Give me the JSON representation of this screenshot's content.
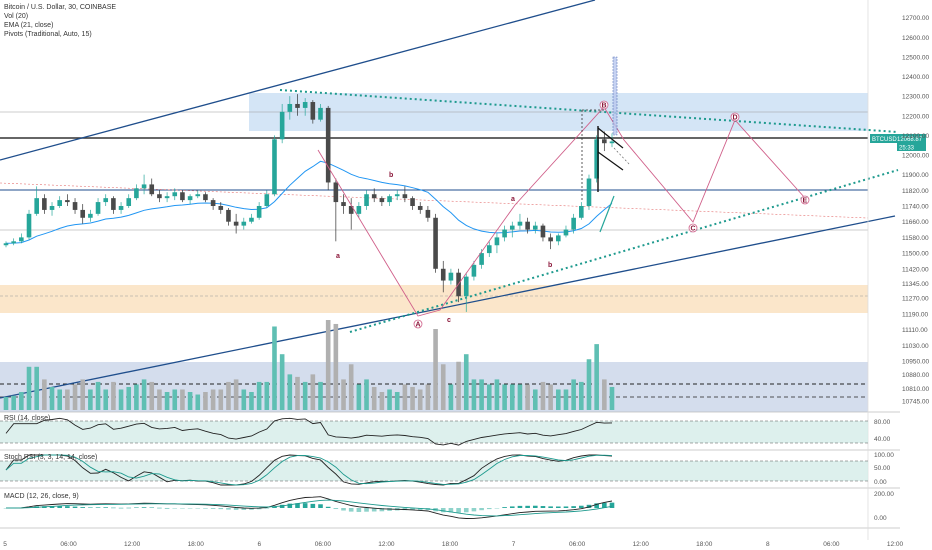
{
  "header": {
    "title": "Bitcoin / U.S. Dollar, 30, COINBASE",
    "vol": "Vol (20)",
    "ema": "EMA (21, close)",
    "pivots": "Pivots (Traditional, Auto, 15)"
  },
  "price_tag": {
    "symbol": "BTCUSD",
    "price": "12068.87",
    "countdown": "25:33"
  },
  "indicators": {
    "rsi_label": "RSI (14, close)",
    "stoch_label": "Stoch RSI (3, 3, 14, 14, close)",
    "macd_label": "MACD (12, 26, close, 9)"
  },
  "colors": {
    "up": "#26a69a",
    "down": "#9e9e9e",
    "ema": "#2196f3",
    "trend": "#1f4e8c",
    "dotted": "#1e9a8e",
    "wave": "#d0608a",
    "zone_blue": "#cfe2f5",
    "zone_orange": "#fbe3c4",
    "tag": "#26a69a"
  },
  "chart_data": {
    "type": "candlestick",
    "title": "Bitcoin / U.S. Dollar, 30, COINBASE",
    "y_ticks": [
      12700,
      12600,
      12500,
      12400,
      12300,
      12200,
      12100,
      12000,
      11900,
      11820,
      11740,
      11660,
      11580,
      11500,
      11420,
      11345,
      11270,
      11190,
      11110,
      11030,
      10950,
      10880,
      10810,
      10745
    ],
    "y_tick_labels": [
      "12700.00",
      "12600.00",
      "12500.00",
      "12400.00",
      "12300.00",
      "12200.00",
      "12100.00",
      "12000.00",
      "11900.00",
      "11820.00",
      "11740.00",
      "11660.00",
      "11580.00",
      "11500.00",
      "11420.00",
      "11345.00",
      "11270.00",
      "11190.00",
      "11110.00",
      "11030.00",
      "10950.00",
      "10880.00",
      "10810.00",
      "10745.00"
    ],
    "x_ticks": [
      "5",
      "06:00",
      "12:00",
      "18:00",
      "6",
      "06:00",
      "12:00",
      "18:00",
      "7",
      "06:00",
      "12:00",
      "18:00",
      "8",
      "06:00",
      "12:00"
    ],
    "ylim": [
      10690,
      12790
    ],
    "candles": [
      [
        11540,
        11560,
        11530,
        11550
      ],
      [
        11550,
        11575,
        11540,
        11560
      ],
      [
        11560,
        11600,
        11550,
        11580
      ],
      [
        11580,
        11720,
        11570,
        11700
      ],
      [
        11700,
        11840,
        11690,
        11780
      ],
      [
        11780,
        11800,
        11700,
        11720
      ],
      [
        11720,
        11760,
        11690,
        11740
      ],
      [
        11740,
        11790,
        11730,
        11770
      ],
      [
        11770,
        11800,
        11740,
        11760
      ],
      [
        11760,
        11780,
        11700,
        11720
      ],
      [
        11720,
        11750,
        11650,
        11680
      ],
      [
        11680,
        11720,
        11660,
        11700
      ],
      [
        11700,
        11780,
        11690,
        11760
      ],
      [
        11760,
        11800,
        11740,
        11780
      ],
      [
        11780,
        11790,
        11700,
        11720
      ],
      [
        11720,
        11760,
        11700,
        11740
      ],
      [
        11740,
        11800,
        11730,
        11780
      ],
      [
        11780,
        11850,
        11770,
        11830
      ],
      [
        11830,
        11900,
        11800,
        11850
      ],
      [
        11850,
        11880,
        11790,
        11800
      ],
      [
        11800,
        11820,
        11760,
        11780
      ],
      [
        11780,
        11810,
        11760,
        11790
      ],
      [
        11790,
        11830,
        11770,
        11810
      ],
      [
        11810,
        11820,
        11760,
        11770
      ],
      [
        11770,
        11800,
        11750,
        11790
      ],
      [
        11790,
        11820,
        11780,
        11800
      ],
      [
        11800,
        11810,
        11760,
        11770
      ],
      [
        11770,
        11780,
        11720,
        11740
      ],
      [
        11740,
        11760,
        11700,
        11720
      ],
      [
        11720,
        11730,
        11640,
        11660
      ],
      [
        11660,
        11700,
        11600,
        11640
      ],
      [
        11640,
        11680,
        11620,
        11660
      ],
      [
        11660,
        11700,
        11650,
        11680
      ],
      [
        11680,
        11760,
        11670,
        11740
      ],
      [
        11740,
        11820,
        11730,
        11800
      ],
      [
        11800,
        12100,
        11790,
        12080
      ],
      [
        12080,
        12260,
        12060,
        12220
      ],
      [
        12220,
        12300,
        12180,
        12260
      ],
      [
        12260,
        12310,
        12200,
        12240
      ],
      [
        12240,
        12290,
        12200,
        12270
      ],
      [
        12270,
        12280,
        12160,
        12180
      ],
      [
        12180,
        12260,
        12170,
        12240
      ],
      [
        12240,
        12250,
        11820,
        11860
      ],
      [
        11860,
        11880,
        11560,
        11760
      ],
      [
        11760,
        11800,
        11700,
        11740
      ],
      [
        11740,
        11780,
        11620,
        11700
      ],
      [
        11700,
        11760,
        11680,
        11740
      ],
      [
        11740,
        11820,
        11720,
        11800
      ],
      [
        11800,
        11830,
        11760,
        11780
      ],
      [
        11780,
        11790,
        11740,
        11760
      ],
      [
        11760,
        11800,
        11740,
        11790
      ],
      [
        11790,
        11820,
        11770,
        11800
      ],
      [
        11800,
        11840,
        11760,
        11780
      ],
      [
        11780,
        11790,
        11720,
        11740
      ],
      [
        11740,
        11760,
        11700,
        11720
      ],
      [
        11720,
        11740,
        11660,
        11680
      ],
      [
        11680,
        11700,
        11400,
        11420
      ],
      [
        11420,
        11460,
        11300,
        11360
      ],
      [
        11360,
        11420,
        11340,
        11400
      ],
      [
        11400,
        11420,
        11250,
        11280
      ],
      [
        11280,
        11400,
        11200,
        11380
      ],
      [
        11380,
        11460,
        11360,
        11440
      ],
      [
        11440,
        11520,
        11420,
        11500
      ],
      [
        11500,
        11560,
        11480,
        11540
      ],
      [
        11540,
        11600,
        11500,
        11580
      ],
      [
        11580,
        11640,
        11560,
        11620
      ],
      [
        11620,
        11660,
        11580,
        11640
      ],
      [
        11640,
        11700,
        11620,
        11660
      ],
      [
        11660,
        11680,
        11600,
        11620
      ],
      [
        11620,
        11660,
        11600,
        11640
      ],
      [
        11640,
        11650,
        11560,
        11580
      ],
      [
        11580,
        11600,
        11520,
        11560
      ],
      [
        11560,
        11600,
        11540,
        11590
      ],
      [
        11590,
        11640,
        11580,
        11620
      ],
      [
        11620,
        11700,
        11600,
        11680
      ],
      [
        11680,
        11760,
        11670,
        11740
      ],
      [
        11740,
        11900,
        11720,
        11880
      ],
      [
        11880,
        12100,
        11860,
        12080
      ],
      [
        12080,
        12120,
        12020,
        12060
      ],
      [
        12060,
        12110,
        12040,
        12069
      ]
    ],
    "wave_labels": [
      "A",
      "B",
      "C",
      "D",
      "E",
      "a",
      "b",
      "c",
      "a",
      "b"
    ],
    "rsi": {
      "levels": [
        80.0,
        40.0
      ],
      "tick_labels": [
        "80.00",
        "40.00"
      ]
    },
    "stoch_rsi": {
      "levels": [
        100.0,
        50.0,
        0.0
      ],
      "tick_labels": [
        "100.00",
        "50.00",
        "0.00"
      ]
    },
    "macd": {
      "levels": [
        200.0,
        0.0
      ],
      "tick_labels": [
        "200.00",
        "0.00"
      ]
    }
  }
}
